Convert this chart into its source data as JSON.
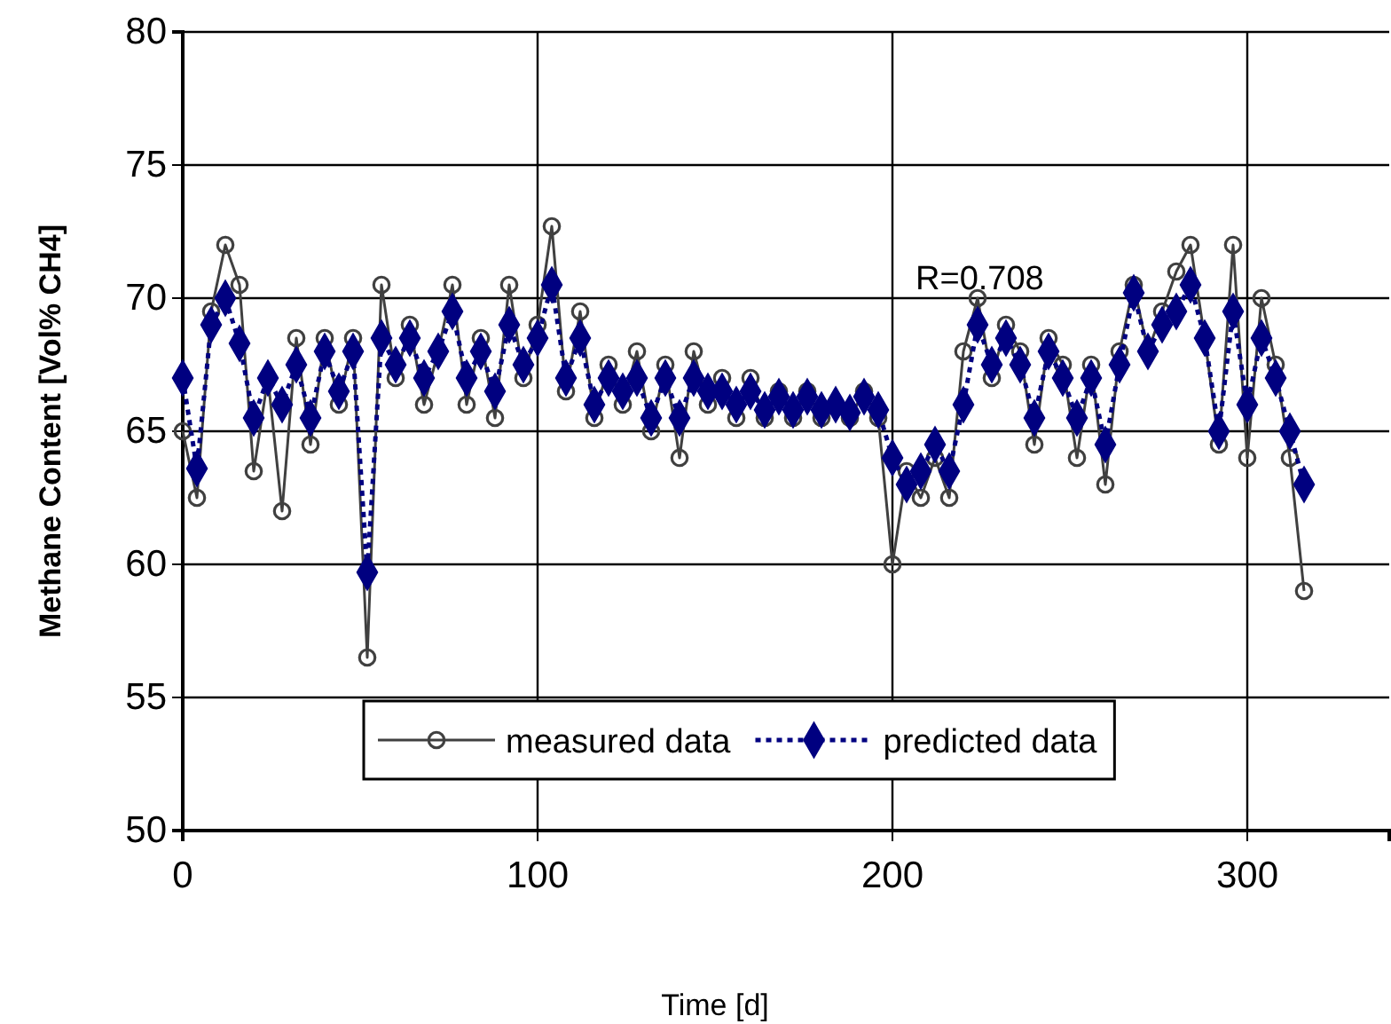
{
  "chart_data": {
    "type": "line",
    "xlabel": "Time [d]",
    "ylabel": "Methane Content [Vol% CH4]",
    "annotations": [
      "R=0.708"
    ],
    "x": [
      0,
      4,
      8,
      12,
      16,
      20,
      24,
      28,
      32,
      36,
      40,
      44,
      48,
      52,
      56,
      60,
      64,
      68,
      72,
      76,
      80,
      84,
      88,
      92,
      96,
      100,
      104,
      108,
      112,
      116,
      120,
      124,
      128,
      132,
      136,
      140,
      144,
      148,
      152,
      156,
      160,
      164,
      168,
      172,
      176,
      180,
      184,
      188,
      192,
      196,
      200,
      204,
      208,
      212,
      216,
      220,
      224,
      228,
      232,
      236,
      240,
      244,
      248,
      252,
      256,
      260,
      264,
      268,
      272,
      276,
      280,
      284,
      288,
      292,
      296,
      300,
      304,
      308,
      312,
      316
    ],
    "series": [
      {
        "name": "measured data",
        "color": "#404040",
        "marker": "circle",
        "line_style": "solid",
        "values": [
          65,
          62.5,
          69.5,
          72,
          70.5,
          63.5,
          67,
          62,
          68.5,
          64.5,
          68.5,
          66,
          68.5,
          56.5,
          70.5,
          67,
          69,
          66,
          68,
          70.5,
          66,
          68.5,
          65.5,
          70.5,
          67,
          69,
          72.7,
          66.5,
          69.5,
          65.5,
          67.5,
          66,
          68,
          65,
          67.5,
          64,
          68,
          66,
          67,
          65.5,
          67,
          65.5,
          66.5,
          65.5,
          66.5,
          65.5,
          66,
          65.5,
          66.5,
          65.5,
          60,
          63.5,
          62.5,
          64,
          62.5,
          68,
          70,
          67,
          69,
          68,
          64.5,
          68.5,
          67.5,
          64,
          67.5,
          63,
          68,
          70.5,
          68,
          69.5,
          71,
          72,
          68.5,
          64.5,
          72,
          64,
          70,
          67.5,
          64,
          59
        ]
      },
      {
        "name": "predicted data",
        "color": "#000080",
        "marker": "diamond",
        "line_style": "dotted",
        "values": [
          67,
          63.6,
          69,
          70,
          68.3,
          65.5,
          67,
          66,
          67.5,
          65.5,
          68,
          66.5,
          68,
          59.7,
          68.5,
          67.5,
          68.5,
          67,
          68,
          69.5,
          67,
          68,
          66.5,
          69,
          67.5,
          68.5,
          70.5,
          67,
          68.5,
          66,
          67,
          66.5,
          67,
          65.5,
          67,
          65.5,
          67,
          66.5,
          66.5,
          66,
          66.5,
          65.8,
          66.3,
          65.8,
          66.3,
          65.8,
          66,
          65.7,
          66.3,
          65.8,
          64,
          63,
          63.5,
          64.5,
          63.5,
          66,
          69,
          67.5,
          68.5,
          67.5,
          65.5,
          68,
          67,
          65.5,
          67,
          64.5,
          67.5,
          70.2,
          68,
          69,
          69.5,
          70.5,
          68.5,
          65,
          69.5,
          66,
          68.5,
          67,
          65,
          63
        ]
      }
    ],
    "xlim": [
      0,
      340
    ],
    "xticks": [
      0,
      100,
      200,
      300
    ],
    "ylim": [
      50,
      80
    ],
    "yticks": [
      50,
      55,
      60,
      65,
      70,
      75,
      80
    ],
    "grid": true,
    "legend": "bottom"
  }
}
